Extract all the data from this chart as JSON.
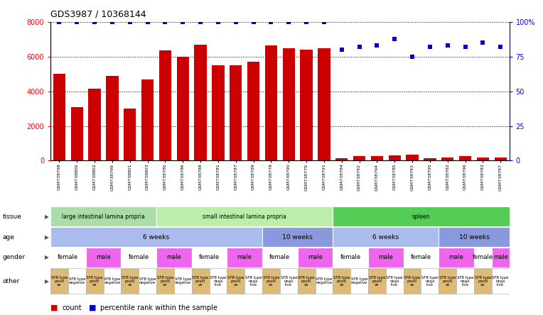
{
  "title": "GDS3987 / 10368144",
  "samples": [
    "GSM738798",
    "GSM738800",
    "GSM738802",
    "GSM738799",
    "GSM738801",
    "GSM738803",
    "GSM738780",
    "GSM738786",
    "GSM738788",
    "GSM738781",
    "GSM738787",
    "GSM738789",
    "GSM738778",
    "GSM738790",
    "GSM738779",
    "GSM738791",
    "GSM738784",
    "GSM738792",
    "GSM738794",
    "GSM738785",
    "GSM738793",
    "GSM738795",
    "GSM738782",
    "GSM738796",
    "GSM738783",
    "GSM738797"
  ],
  "counts": [
    5000,
    3100,
    4150,
    4900,
    3000,
    4700,
    6350,
    6000,
    6700,
    5500,
    5500,
    5700,
    6650,
    6500,
    6400,
    6500,
    150,
    250,
    250,
    300,
    350,
    150,
    200,
    250,
    200,
    200
  ],
  "percentile": [
    100,
    100,
    100,
    100,
    100,
    100,
    100,
    100,
    100,
    100,
    100,
    100,
    100,
    100,
    100,
    100,
    80,
    82,
    83,
    88,
    75,
    82,
    83,
    82,
    85,
    82
  ],
  "bar_color": "#cc0000",
  "dot_color": "#0000cc",
  "ylim_left": [
    0,
    8000
  ],
  "ylim_right": [
    0,
    100
  ],
  "yticks_left": [
    0,
    2000,
    4000,
    6000,
    8000
  ],
  "yticks_right": [
    0,
    25,
    50,
    75,
    100
  ],
  "grid_values": [
    2000,
    4000,
    6000,
    8000
  ],
  "tissue_data": [
    {
      "label": "large intestinal lamina propria",
      "start": 0,
      "end": 6,
      "color": "#aaddaa"
    },
    {
      "label": "small intestinal lamina propria",
      "start": 6,
      "end": 16,
      "color": "#bbeeaa"
    },
    {
      "label": "spleen",
      "start": 16,
      "end": 26,
      "color": "#55cc55"
    }
  ],
  "age_data": [
    {
      "label": "6 weeks",
      "start": 0,
      "end": 12,
      "color": "#aabbee"
    },
    {
      "label": "10 weeks",
      "start": 12,
      "end": 16,
      "color": "#8899dd"
    },
    {
      "label": "6 weeks",
      "start": 16,
      "end": 22,
      "color": "#aabbee"
    },
    {
      "label": "10 weeks",
      "start": 22,
      "end": 26,
      "color": "#8899dd"
    }
  ],
  "gender_data": [
    {
      "label": "female",
      "start": 0,
      "end": 2,
      "color": "#ffffff"
    },
    {
      "label": "male",
      "start": 2,
      "end": 4,
      "color": "#ee66ee"
    },
    {
      "label": "female",
      "start": 4,
      "end": 6,
      "color": "#ffffff"
    },
    {
      "label": "male",
      "start": 6,
      "end": 8,
      "color": "#ee66ee"
    },
    {
      "label": "female",
      "start": 8,
      "end": 10,
      "color": "#ffffff"
    },
    {
      "label": "male",
      "start": 10,
      "end": 12,
      "color": "#ee66ee"
    },
    {
      "label": "female",
      "start": 12,
      "end": 14,
      "color": "#ffffff"
    },
    {
      "label": "male",
      "start": 14,
      "end": 16,
      "color": "#ee66ee"
    },
    {
      "label": "female",
      "start": 16,
      "end": 18,
      "color": "#ffffff"
    },
    {
      "label": "male",
      "start": 18,
      "end": 20,
      "color": "#ee66ee"
    },
    {
      "label": "female",
      "start": 20,
      "end": 22,
      "color": "#ffffff"
    },
    {
      "label": "male",
      "start": 22,
      "end": 24,
      "color": "#ee66ee"
    },
    {
      "label": "female",
      "start": 24,
      "end": 25,
      "color": "#ffffff"
    },
    {
      "label": "male",
      "start": 25,
      "end": 26,
      "color": "#ee66ee"
    }
  ],
  "other_data": [
    {
      "label": "SFB type\npositi\nve",
      "start": 0,
      "end": 1,
      "color": "#ddbb77"
    },
    {
      "label": "SFB type\nnegative",
      "start": 1,
      "end": 2,
      "color": "#ffffff"
    },
    {
      "label": "SFB type\npositi\nve",
      "start": 2,
      "end": 3,
      "color": "#ddbb77"
    },
    {
      "label": "SFB type\nnegative",
      "start": 3,
      "end": 4,
      "color": "#ffffff"
    },
    {
      "label": "SFB type\npositi\nve",
      "start": 4,
      "end": 5,
      "color": "#ddbb77"
    },
    {
      "label": "SFB type\nnegative",
      "start": 5,
      "end": 6,
      "color": "#ffffff"
    },
    {
      "label": "SFB type\npositi\nve",
      "start": 6,
      "end": 7,
      "color": "#ddbb77"
    },
    {
      "label": "SFB type\nnegative",
      "start": 7,
      "end": 8,
      "color": "#ffffff"
    },
    {
      "label": "SFB type\npositi\nve",
      "start": 8,
      "end": 9,
      "color": "#ddbb77"
    },
    {
      "label": "SFB type\nnega\ntive",
      "start": 9,
      "end": 10,
      "color": "#ffffff"
    },
    {
      "label": "SFB type\npositi\nve",
      "start": 10,
      "end": 11,
      "color": "#ddbb77"
    },
    {
      "label": "SFB type\nnega\ntive",
      "start": 11,
      "end": 12,
      "color": "#ffffff"
    },
    {
      "label": "SFB type\npositi\nve",
      "start": 12,
      "end": 13,
      "color": "#ddbb77"
    },
    {
      "label": "SFB type\nnega\ntive",
      "start": 13,
      "end": 14,
      "color": "#ffffff"
    },
    {
      "label": "SFB type\npositi\nve",
      "start": 14,
      "end": 15,
      "color": "#ddbb77"
    },
    {
      "label": "SFB type\nnegative",
      "start": 15,
      "end": 16,
      "color": "#ffffff"
    },
    {
      "label": "SFB type\npositi\nve",
      "start": 16,
      "end": 17,
      "color": "#ddbb77"
    },
    {
      "label": "SFB type\nnegative",
      "start": 17,
      "end": 18,
      "color": "#ffffff"
    },
    {
      "label": "SFB type\npositi\nve",
      "start": 18,
      "end": 19,
      "color": "#ddbb77"
    },
    {
      "label": "SFB type\nnega\ntive",
      "start": 19,
      "end": 20,
      "color": "#ffffff"
    },
    {
      "label": "SFB type\npositi\nve",
      "start": 20,
      "end": 21,
      "color": "#ddbb77"
    },
    {
      "label": "SFB type\nnega\ntive",
      "start": 21,
      "end": 22,
      "color": "#ffffff"
    },
    {
      "label": "SFB type\npositi\nve",
      "start": 22,
      "end": 23,
      "color": "#ddbb77"
    },
    {
      "label": "SFB type\nnega\ntive",
      "start": 23,
      "end": 24,
      "color": "#ffffff"
    },
    {
      "label": "SFB type\npositi\nve",
      "start": 24,
      "end": 25,
      "color": "#ddbb77"
    },
    {
      "label": "SFB type\nnega\ntive",
      "start": 25,
      "end": 26,
      "color": "#ffffff"
    }
  ],
  "row_labels": [
    "tissue",
    "age",
    "gender",
    "other"
  ],
  "background_color": "#ffffff"
}
